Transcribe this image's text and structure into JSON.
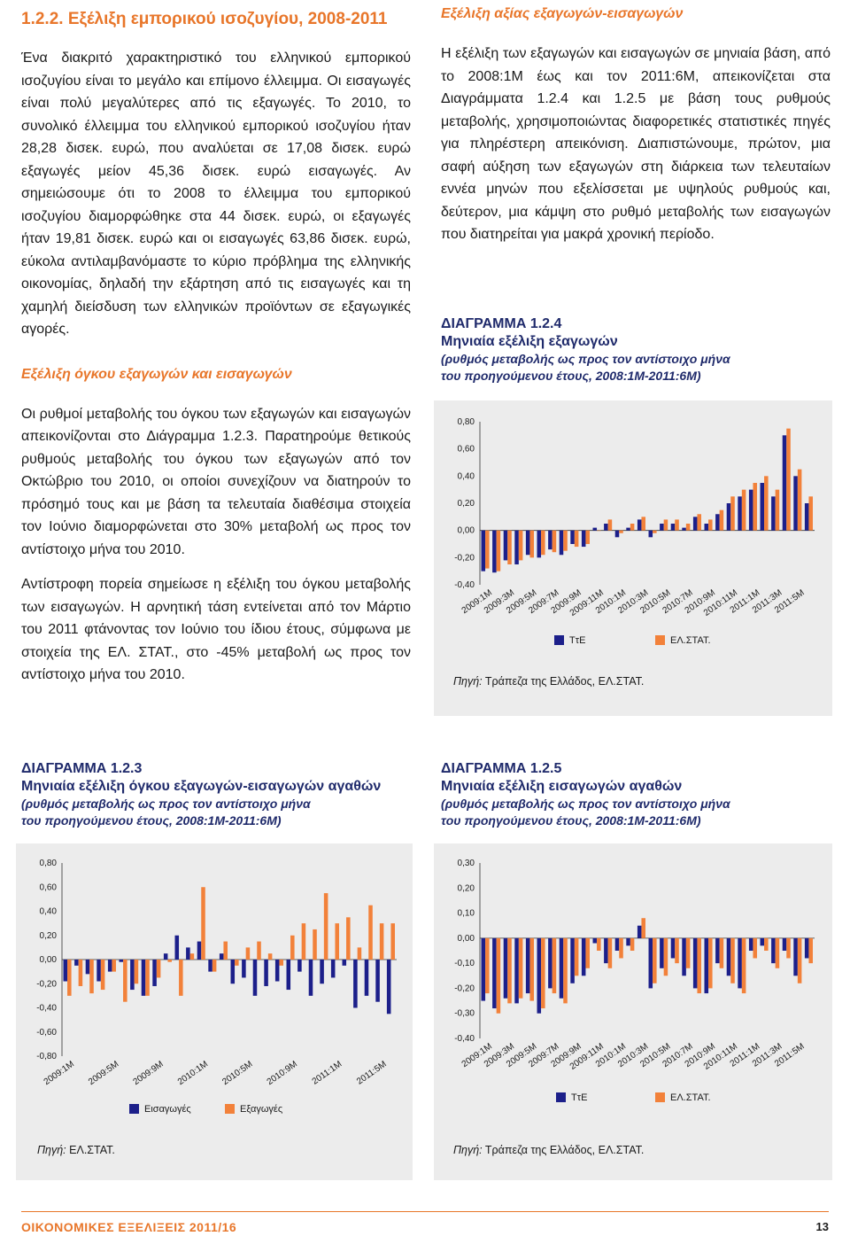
{
  "left": {
    "section_title": "1.2.2. Εξέλιξη εμπορικού ισοζυγίου, 2008-2011",
    "paragraph1": "Ένα διακριτό χαρακτηριστικό του ελληνικού εμπορικού ισοζυγίου είναι το μεγάλο και επίμονο έλλειμμα. Οι εισαγωγές είναι πολύ μεγαλύτερες από τις εξαγωγές. Το 2010, το συνολικό έλλειμμα του ελληνικού εμπορικού ισοζυγίου ήταν 28,28 δισεκ. ευρώ, που αναλύεται σε 17,08 δισεκ. ευρώ εξαγωγές μείον 45,36 δισεκ. ευρώ εισαγωγές. Αν σημειώσουμε ότι το 2008 το έλλειμμα του εμπορικού ισοζυγίου διαμορφώθηκε στα 44 δισεκ. ευρώ, οι εξαγωγές ήταν 19,81 δισεκ. ευρώ και οι εισαγωγές 63,86 δισεκ. ευρώ, εύκολα αντιλαμβανόμαστε το κύριο πρόβλημα της ελληνικής οικονομίας, δηλαδή την εξάρτηση από τις εισαγωγές και τη χαμηλή διείσδυση των ελληνικών προϊόντων σε εξαγωγικές αγορές.",
    "subsection_title": "Εξέλιξη όγκου εξαγωγών και εισαγωγών",
    "paragraph2": "Οι ρυθμοί μεταβολής του όγκου των εξαγωγών και εισαγωγών απεικονίζονται στο Διάγραμμα 1.2.3. Παρατηρούμε θετικούς ρυθμούς μεταβολής του όγκου των εξαγωγών από τον Οκτώβριο του 2010, οι οποίοι συνεχίζουν να διατηρούν το πρόσημό τους και με βάση τα τελευταία διαθέσιμα στοιχεία τον Ιούνιο διαμορφώνεται στο 30% μεταβολή ως προς τον αντίστοιχο μήνα του 2010.",
    "paragraph3": "Αντίστροφη πορεία σημείωσε η εξέλιξη του όγκου μεταβολής των εισαγωγών. Η αρνητική τάση εντείνεται από τον Μάρτιο του 2011 φτάνοντας τον Ιούνιο του ίδιου έτους, σύμφωνα με στοιχεία της ΕΛ. ΣΤΑΤ., στο -45% μεταβολή ως προς τον αντίστοιχο μήνα του 2010."
  },
  "right": {
    "subsection_title": "Εξέλιξη αξίας εξαγωγών-εισαγωγών",
    "paragraph1": "Η εξέλιξη των εξαγωγών και εισαγωγών σε μηνιαία βάση, από το 2008:1Μ έως και τον 2011:6Μ, απεικονίζεται στα Διαγράμματα 1.2.4 και 1.2.5 με βάση τους ρυθμούς μεταβολής, χρησιμοποιώντας διαφορετικές στατιστικές πηγές για πληρέστερη απεικόνιση. Διαπιστώνουμε, πρώτον, μια σαφή αύξηση των εξαγωγών στη διάρκεια των τελευταίων εννέα μηνών που εξελίσσεται με υψηλούς ρυθμούς και, δεύτερον, μια κάμψη στο ρυθμό μεταβολής των εισαγωγών που διατηρείται για μακρά χρονική περίοδο."
  },
  "figures": {
    "fig124": {
      "label": "ΔΙΑΓΡΑΜΜΑ 1.2.4",
      "title": "Μηνιαία εξέλιξη εξαγωγών",
      "subtitle1": "(ρυθμός μεταβολής ως προς τον αντίστοιχο μήνα",
      "subtitle2": "του προηγούμενου έτους, 2008:1Μ-2011:6Μ)",
      "source_prefix": "Πηγή:",
      "source_text": " Τράπεζα της Ελλάδος, ΕΛ.ΣΤΑΤ."
    },
    "fig123": {
      "label": "ΔΙΑΓΡΑΜΜΑ 1.2.3",
      "title": "Μηνιαία εξέλιξη όγκου εξαγωγών-εισαγωγών αγαθών",
      "subtitle1": "(ρυθμός μεταβολής ως προς τον αντίστοιχο μήνα",
      "subtitle2": "του προηγούμενου έτους, 2008:1Μ-2011:6Μ)",
      "source_prefix": "Πηγή:",
      "source_text": " ΕΛ.ΣΤΑΤ."
    },
    "fig125": {
      "label": "ΔΙΑΓΡΑΜΜΑ 1.2.5",
      "title": "Μηνιαία εξέλιξη εισαγωγών αγαθών",
      "subtitle1": "(ρυθμός μεταβολής ως προς τον αντίστοιχο μήνα",
      "subtitle2": "του προηγούμενου έτους, 2008:1Μ-2011:6Μ)",
      "source_prefix": "Πηγή:",
      "source_text": " Τράπεζα της Ελλάδος, ΕΛ.ΣΤΑΤ."
    }
  },
  "footer": {
    "publication": "ΟΙΚΟΝΟΜΙΚΕΣ ΕΞΕΛΙΞΕΙΣ 2011/16",
    "page_number": "13"
  },
  "colors": {
    "orange": "#e8762a",
    "navy": "#1f2a6b",
    "bar_blue": "#1c1f8a",
    "bar_orange": "#f2813a"
  },
  "chart_data": [
    {
      "id": "fig124",
      "type": "bar",
      "categories": [
        "2009:1M",
        "2009:2M",
        "2009:3M",
        "2009:4M",
        "2009:5M",
        "2009:6M",
        "2009:7M",
        "2009:8M",
        "2009:9M",
        "2009:10M",
        "2009:11M",
        "2009:12M",
        "2010:1M",
        "2010:2M",
        "2010:3M",
        "2010:4M",
        "2010:5M",
        "2010:6M",
        "2010:7M",
        "2010:8M",
        "2010:9M",
        "2010:10M",
        "2010:11M",
        "2010:12M",
        "2011:1M",
        "2011:2M",
        "2011:3M",
        "2011:4M",
        "2011:5M",
        "2011:6M"
      ],
      "tick_labels": [
        "2009:1M",
        "2009:3M",
        "2009:5M",
        "2009:7M",
        "2009:9M",
        "2009:11M",
        "2010:1M",
        "2010:3M",
        "2010:5M",
        "2010:7M",
        "2010:9M",
        "2010:11M",
        "2011:1M",
        "2011:3M",
        "2011:5M"
      ],
      "series": [
        {
          "name": "ΤτΕ",
          "color": "#1c1f8a",
          "values": [
            -0.3,
            -0.31,
            -0.22,
            -0.25,
            -0.18,
            -0.2,
            -0.14,
            -0.18,
            -0.1,
            -0.12,
            0.02,
            0.05,
            -0.05,
            0.02,
            0.08,
            -0.05,
            0.05,
            0.05,
            0.02,
            0.1,
            0.05,
            0.12,
            0.2,
            0.25,
            0.3,
            0.35,
            0.25,
            0.7,
            0.4,
            0.2
          ]
        },
        {
          "name": "ΕΛ.ΣΤΑΤ.",
          "color": "#f2813a",
          "values": [
            -0.28,
            -0.3,
            -0.25,
            -0.22,
            -0.2,
            -0.18,
            -0.16,
            -0.15,
            -0.12,
            -0.1,
            0.0,
            0.08,
            -0.02,
            0.05,
            0.1,
            -0.02,
            0.08,
            0.08,
            0.05,
            0.12,
            0.08,
            0.15,
            0.25,
            0.3,
            0.35,
            0.4,
            0.3,
            0.75,
            0.45,
            0.25
          ]
        }
      ],
      "yticks": [
        "0,80",
        "0,60",
        "0,40",
        "0,20",
        "0,00",
        "-0,20",
        "-0,40"
      ],
      "ylim": [
        -0.4,
        0.8
      ]
    },
    {
      "id": "fig123",
      "type": "bar",
      "categories": [
        "2009:1M",
        "2009:2M",
        "2009:3M",
        "2009:4M",
        "2009:5M",
        "2009:6M",
        "2009:7M",
        "2009:8M",
        "2009:9M",
        "2009:10M",
        "2009:11M",
        "2009:12M",
        "2010:1M",
        "2010:2M",
        "2010:3M",
        "2010:4M",
        "2010:5M",
        "2010:6M",
        "2010:7M",
        "2010:8M",
        "2010:9M",
        "2010:10M",
        "2010:11M",
        "2010:12M",
        "2011:1M",
        "2011:2M",
        "2011:3M",
        "2011:4M",
        "2011:5M",
        "2011:6M"
      ],
      "tick_labels": [
        "2009:1M",
        "2009:5M",
        "2009:9M",
        "2010:1M",
        "2010:5M",
        "2010:9M",
        "2011:1M",
        "2011:5M"
      ],
      "series": [
        {
          "name": "Εισαγωγές",
          "color": "#1c1f8a",
          "values": [
            -0.18,
            -0.05,
            -0.12,
            -0.18,
            -0.1,
            -0.02,
            -0.25,
            -0.3,
            -0.22,
            0.05,
            0.2,
            0.1,
            0.15,
            -0.1,
            0.05,
            -0.2,
            -0.15,
            -0.3,
            -0.22,
            -0.18,
            -0.25,
            -0.1,
            -0.3,
            -0.2,
            -0.15,
            -0.05,
            -0.4,
            -0.3,
            -0.35,
            -0.45
          ]
        },
        {
          "name": "Εξαγωγές",
          "color": "#f2813a",
          "values": [
            -0.3,
            -0.22,
            -0.28,
            -0.25,
            -0.1,
            -0.35,
            -0.2,
            -0.3,
            -0.15,
            -0.02,
            -0.3,
            0.05,
            0.6,
            -0.1,
            0.15,
            -0.05,
            0.1,
            0.15,
            0.05,
            -0.05,
            0.2,
            0.3,
            0.25,
            0.55,
            0.3,
            0.35,
            0.1,
            0.45,
            0.3,
            0.3
          ]
        }
      ],
      "yticks": [
        "0,80",
        "0,60",
        "0,40",
        "0,20",
        "0,00",
        "-0,20",
        "-0,40",
        "-0,60",
        "-0,80"
      ],
      "ylim": [
        -0.8,
        0.8
      ]
    },
    {
      "id": "fig125",
      "type": "bar",
      "categories": [
        "2009:1M",
        "2009:2M",
        "2009:3M",
        "2009:4M",
        "2009:5M",
        "2009:6M",
        "2009:7M",
        "2009:8M",
        "2009:9M",
        "2009:10M",
        "2009:11M",
        "2009:12M",
        "2010:1M",
        "2010:2M",
        "2010:3M",
        "2010:4M",
        "2010:5M",
        "2010:6M",
        "2010:7M",
        "2010:8M",
        "2010:9M",
        "2010:10M",
        "2010:11M",
        "2010:12M",
        "2011:1M",
        "2011:2M",
        "2011:3M",
        "2011:4M",
        "2011:5M",
        "2011:6M"
      ],
      "tick_labels": [
        "2009:1M",
        "2009:3M",
        "2009:5M",
        "2009:7M",
        "2009:9M",
        "2009:11M",
        "2010:1M",
        "2010:3M",
        "2010:5M",
        "2010:7M",
        "2010:9M",
        "2010:11M",
        "2011:1M",
        "2011:3M",
        "2011:5M"
      ],
      "series": [
        {
          "name": "ΤτΕ",
          "color": "#1c1f8a",
          "values": [
            -0.25,
            -0.28,
            -0.24,
            -0.26,
            -0.22,
            -0.3,
            -0.2,
            -0.24,
            -0.18,
            -0.15,
            -0.02,
            -0.1,
            -0.05,
            -0.03,
            0.05,
            -0.2,
            -0.12,
            -0.08,
            -0.15,
            -0.2,
            -0.22,
            -0.1,
            -0.15,
            -0.2,
            -0.05,
            -0.03,
            -0.1,
            -0.05,
            -0.15,
            -0.08
          ]
        },
        {
          "name": "ΕΛ.ΣΤΑΤ.",
          "color": "#f2813a",
          "values": [
            -0.22,
            -0.3,
            -0.26,
            -0.24,
            -0.25,
            -0.28,
            -0.22,
            -0.26,
            -0.15,
            -0.12,
            -0.05,
            -0.12,
            -0.08,
            -0.05,
            0.08,
            -0.18,
            -0.15,
            -0.1,
            -0.12,
            -0.22,
            -0.2,
            -0.12,
            -0.18,
            -0.22,
            -0.08,
            -0.05,
            -0.12,
            -0.08,
            -0.18,
            -0.1
          ]
        }
      ],
      "yticks": [
        "0,30",
        "0,20",
        "0,10",
        "0,00",
        "-0,10",
        "-0,20",
        "-0,30",
        "-0,40"
      ],
      "ylim": [
        -0.4,
        0.3
      ]
    }
  ]
}
